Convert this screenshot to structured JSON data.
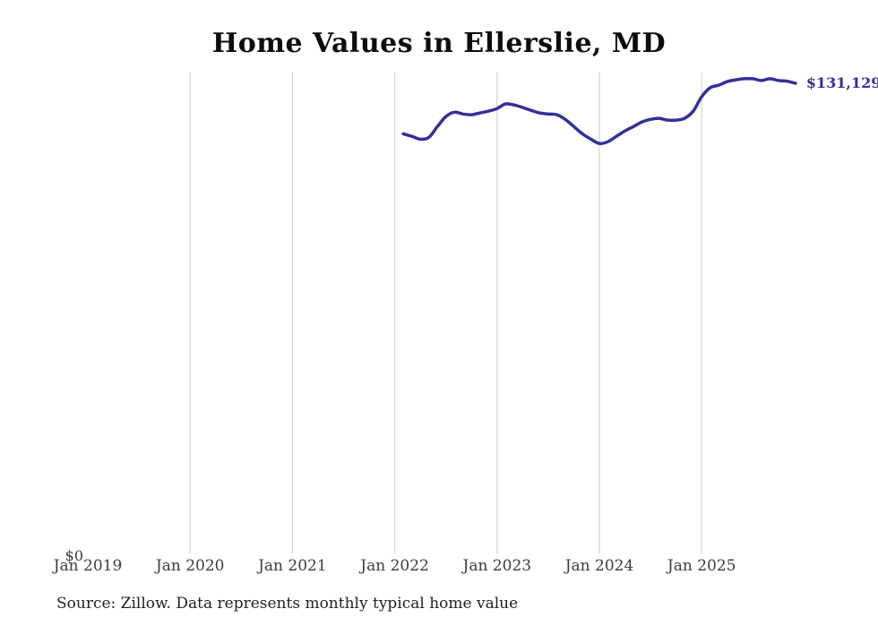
{
  "chart": {
    "title": "Home Values in Ellerslie, MD",
    "end_label": "$131,129",
    "y_axis": {
      "zero_label": "$0"
    },
    "x_axis": {
      "tick_labels": [
        "Jan 2019",
        "Jan 2020",
        "Jan 2021",
        "Jan 2022",
        "Jan 2023",
        "Jan 2024",
        "Jan 2025"
      ]
    },
    "source_note": "Source: Zillow. Data represents monthly typical home value",
    "colors": {
      "line": "#333099",
      "grid": "#cccccc",
      "tick_text": "#3d3d3d",
      "title_text": "#0d0d0d",
      "source_text": "#1f1f1f"
    }
  },
  "chart_data": {
    "type": "line",
    "title": "Home Values in Ellerslie, MD",
    "series_name": "Monthly typical home value",
    "x": [
      "Feb 2022",
      "Mar 2022",
      "Apr 2022",
      "May 2022",
      "Jun 2022",
      "Jul 2022",
      "Aug 2022",
      "Sep 2022",
      "Oct 2022",
      "Nov 2022",
      "Dec 2022",
      "Jan 2023",
      "Feb 2023",
      "Mar 2023",
      "Apr 2023",
      "May 2023",
      "Jun 2023",
      "Jul 2023",
      "Aug 2023",
      "Sep 2023",
      "Oct 2023",
      "Nov 2023",
      "Dec 2023",
      "Jan 2024",
      "Feb 2024",
      "Mar 2024",
      "Apr 2024",
      "May 2024",
      "Jun 2024",
      "Jul 2024",
      "Aug 2024",
      "Sep 2024",
      "Oct 2024",
      "Nov 2024",
      "Dec 2024",
      "Jan 2025",
      "Feb 2025",
      "Mar 2025",
      "Apr 2025",
      "May 2025",
      "Jun 2025",
      "Jul 2025",
      "Aug 2025",
      "Sep 2025",
      "Oct 2025",
      "Nov 2025",
      "Dec 2025"
    ],
    "values": [
      117100,
      116400,
      115600,
      116100,
      119100,
      121900,
      123100,
      122600,
      122400,
      122900,
      123400,
      124100,
      125400,
      125100,
      124400,
      123600,
      122900,
      122600,
      122400,
      121100,
      119100,
      117100,
      115600,
      114400,
      114900,
      116400,
      117900,
      119100,
      120400,
      121100,
      121400,
      120900,
      120900,
      121400,
      123400,
      127400,
      129900,
      130600,
      131600,
      132100,
      132400,
      132400,
      131900,
      132400,
      131900,
      131700,
      131129
    ],
    "last_value": 131129,
    "last_value_label": "$131,129",
    "xlabel": "",
    "ylabel": "",
    "x_axis_range": [
      "Jan 2019",
      "Jan 2026"
    ],
    "x_ticks": [
      "Jan 2019",
      "Jan 2020",
      "Jan 2021",
      "Jan 2022",
      "Jan 2023",
      "Jan 2024",
      "Jan 2025"
    ],
    "y_ticks": [
      "$0"
    ],
    "ylim": [
      0,
      134000
    ],
    "grid": "vertical-yearly",
    "legend": "none",
    "annotation": "Source: Zillow. Data represents monthly typical home value"
  }
}
